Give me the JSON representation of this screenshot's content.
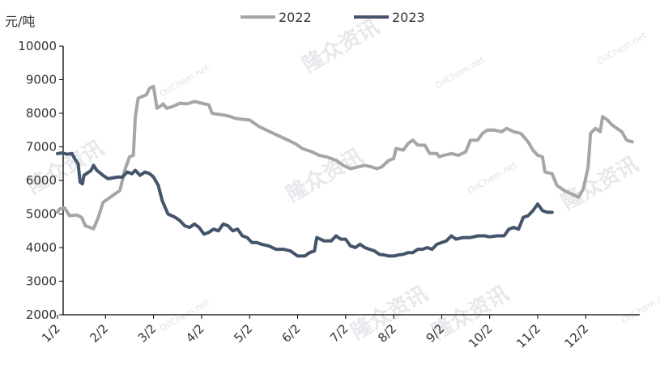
{
  "chart_data": {
    "type": "line",
    "unit_label": "元/吨",
    "ylim": [
      2000,
      10000
    ],
    "yticks": [
      2000,
      3000,
      4000,
      5000,
      6000,
      7000,
      8000,
      9000,
      10000
    ],
    "x_domain": [
      0,
      12
    ],
    "xticks": [
      {
        "label": "1/2",
        "x": 0
      },
      {
        "label": "2/2",
        "x": 1
      },
      {
        "label": "3/2",
        "x": 2
      },
      {
        "label": "4/2",
        "x": 3
      },
      {
        "label": "5/2",
        "x": 4
      },
      {
        "label": "6/2",
        "x": 5
      },
      {
        "label": "7/2",
        "x": 6
      },
      {
        "label": "8/2",
        "x": 7
      },
      {
        "label": "9/2",
        "x": 8
      },
      {
        "label": "10/2",
        "x": 9
      },
      {
        "label": "11/2",
        "x": 10
      },
      {
        "label": "12/2",
        "x": 11
      }
    ],
    "legend_position": "top",
    "watermark": "隆众资讯",
    "watermark_small": "OilChem.net",
    "series": [
      {
        "name": "2022",
        "color": "#a6a6a6",
        "points": [
          [
            0.0,
            5050
          ],
          [
            0.04,
            5150
          ],
          [
            0.15,
            5180
          ],
          [
            0.25,
            4950
          ],
          [
            0.4,
            4970
          ],
          [
            0.5,
            4900
          ],
          [
            0.58,
            4650
          ],
          [
            0.75,
            4560
          ],
          [
            0.85,
            4900
          ],
          [
            0.95,
            5350
          ],
          [
            1.1,
            5500
          ],
          [
            1.3,
            5700
          ],
          [
            1.4,
            6300
          ],
          [
            1.5,
            6700
          ],
          [
            1.58,
            6750
          ],
          [
            1.62,
            7900
          ],
          [
            1.68,
            8450
          ],
          [
            1.85,
            8550
          ],
          [
            1.92,
            8750
          ],
          [
            2.0,
            8800
          ],
          [
            2.07,
            8150
          ],
          [
            2.13,
            8200
          ],
          [
            2.2,
            8280
          ],
          [
            2.27,
            8150
          ],
          [
            2.4,
            8200
          ],
          [
            2.55,
            8300
          ],
          [
            2.7,
            8280
          ],
          [
            2.85,
            8350
          ],
          [
            3.0,
            8300
          ],
          [
            3.15,
            8250
          ],
          [
            3.22,
            8000
          ],
          [
            3.3,
            7980
          ],
          [
            3.45,
            7950
          ],
          [
            3.6,
            7900
          ],
          [
            3.7,
            7850
          ],
          [
            3.85,
            7820
          ],
          [
            4.0,
            7800
          ],
          [
            4.1,
            7700
          ],
          [
            4.2,
            7600
          ],
          [
            4.35,
            7500
          ],
          [
            4.5,
            7400
          ],
          [
            4.65,
            7300
          ],
          [
            4.8,
            7200
          ],
          [
            4.95,
            7100
          ],
          [
            5.1,
            6950
          ],
          [
            5.3,
            6850
          ],
          [
            5.45,
            6750
          ],
          [
            5.6,
            6700
          ],
          [
            5.8,
            6600
          ],
          [
            5.95,
            6450
          ],
          [
            6.1,
            6350
          ],
          [
            6.25,
            6400
          ],
          [
            6.4,
            6450
          ],
          [
            6.55,
            6400
          ],
          [
            6.65,
            6350
          ],
          [
            6.75,
            6400
          ],
          [
            6.9,
            6600
          ],
          [
            7.0,
            6650
          ],
          [
            7.05,
            6950
          ],
          [
            7.2,
            6900
          ],
          [
            7.3,
            7100
          ],
          [
            7.4,
            7200
          ],
          [
            7.5,
            7050
          ],
          [
            7.65,
            7050
          ],
          [
            7.75,
            6800
          ],
          [
            7.9,
            6800
          ],
          [
            7.95,
            6700
          ],
          [
            8.05,
            6750
          ],
          [
            8.2,
            6800
          ],
          [
            8.35,
            6750
          ],
          [
            8.5,
            6850
          ],
          [
            8.6,
            7200
          ],
          [
            8.75,
            7200
          ],
          [
            8.85,
            7400
          ],
          [
            8.95,
            7500
          ],
          [
            9.1,
            7500
          ],
          [
            9.25,
            7450
          ],
          [
            9.35,
            7550
          ],
          [
            9.5,
            7450
          ],
          [
            9.65,
            7400
          ],
          [
            9.8,
            7150
          ],
          [
            9.9,
            6900
          ],
          [
            10.0,
            6750
          ],
          [
            10.1,
            6700
          ],
          [
            10.15,
            6250
          ],
          [
            10.3,
            6200
          ],
          [
            10.4,
            5850
          ],
          [
            10.55,
            5700
          ],
          [
            10.7,
            5600
          ],
          [
            10.85,
            5500
          ],
          [
            10.95,
            5750
          ],
          [
            11.05,
            6400
          ],
          [
            11.1,
            7400
          ],
          [
            11.2,
            7550
          ],
          [
            11.3,
            7450
          ],
          [
            11.35,
            7900
          ],
          [
            11.45,
            7800
          ],
          [
            11.55,
            7650
          ],
          [
            11.65,
            7550
          ],
          [
            11.75,
            7450
          ],
          [
            11.85,
            7200
          ],
          [
            11.97,
            7150
          ]
        ]
      },
      {
        "name": "2023",
        "color": "#44546a",
        "points": [
          [
            0.0,
            6800
          ],
          [
            0.1,
            6820
          ],
          [
            0.2,
            6780
          ],
          [
            0.3,
            6800
          ],
          [
            0.38,
            6600
          ],
          [
            0.43,
            6500
          ],
          [
            0.47,
            5950
          ],
          [
            0.52,
            5900
          ],
          [
            0.55,
            6150
          ],
          [
            0.6,
            6200
          ],
          [
            0.7,
            6300
          ],
          [
            0.75,
            6450
          ],
          [
            0.82,
            6300
          ],
          [
            0.95,
            6150
          ],
          [
            1.05,
            6050
          ],
          [
            1.25,
            6100
          ],
          [
            1.35,
            6100
          ],
          [
            1.45,
            6250
          ],
          [
            1.55,
            6200
          ],
          [
            1.62,
            6300
          ],
          [
            1.72,
            6150
          ],
          [
            1.82,
            6250
          ],
          [
            1.92,
            6200
          ],
          [
            2.0,
            6100
          ],
          [
            2.1,
            5850
          ],
          [
            2.18,
            5400
          ],
          [
            2.3,
            5000
          ],
          [
            2.45,
            4900
          ],
          [
            2.55,
            4800
          ],
          [
            2.65,
            4650
          ],
          [
            2.75,
            4600
          ],
          [
            2.85,
            4700
          ],
          [
            2.95,
            4600
          ],
          [
            3.05,
            4400
          ],
          [
            3.15,
            4450
          ],
          [
            3.25,
            4550
          ],
          [
            3.35,
            4500
          ],
          [
            3.45,
            4700
          ],
          [
            3.55,
            4650
          ],
          [
            3.65,
            4500
          ],
          [
            3.75,
            4550
          ],
          [
            3.85,
            4350
          ],
          [
            3.95,
            4300
          ],
          [
            4.05,
            4150
          ],
          [
            4.15,
            4150
          ],
          [
            4.25,
            4100
          ],
          [
            4.4,
            4050
          ],
          [
            4.55,
            3950
          ],
          [
            4.7,
            3950
          ],
          [
            4.85,
            3900
          ],
          [
            5.0,
            3750
          ],
          [
            5.15,
            3750
          ],
          [
            5.25,
            3850
          ],
          [
            5.35,
            3900
          ],
          [
            5.4,
            4300
          ],
          [
            5.55,
            4200
          ],
          [
            5.7,
            4200
          ],
          [
            5.8,
            4350
          ],
          [
            5.9,
            4250
          ],
          [
            6.0,
            4250
          ],
          [
            6.1,
            4050
          ],
          [
            6.2,
            4000
          ],
          [
            6.3,
            4100
          ],
          [
            6.4,
            4000
          ],
          [
            6.5,
            3950
          ],
          [
            6.6,
            3900
          ],
          [
            6.7,
            3800
          ],
          [
            6.8,
            3780
          ],
          [
            6.9,
            3750
          ],
          [
            7.0,
            3750
          ],
          [
            7.1,
            3780
          ],
          [
            7.2,
            3800
          ],
          [
            7.3,
            3850
          ],
          [
            7.4,
            3850
          ],
          [
            7.5,
            3950
          ],
          [
            7.6,
            3950
          ],
          [
            7.7,
            4000
          ],
          [
            7.8,
            3950
          ],
          [
            7.9,
            4100
          ],
          [
            8.0,
            4150
          ],
          [
            8.1,
            4200
          ],
          [
            8.2,
            4350
          ],
          [
            8.3,
            4250
          ],
          [
            8.45,
            4300
          ],
          [
            8.6,
            4300
          ],
          [
            8.75,
            4350
          ],
          [
            8.9,
            4350
          ],
          [
            9.0,
            4320
          ],
          [
            9.15,
            4350
          ],
          [
            9.3,
            4350
          ],
          [
            9.4,
            4550
          ],
          [
            9.5,
            4600
          ],
          [
            9.6,
            4550
          ],
          [
            9.7,
            4900
          ],
          [
            9.8,
            4950
          ],
          [
            9.9,
            5100
          ],
          [
            10.0,
            5300
          ],
          [
            10.1,
            5100
          ],
          [
            10.2,
            5050
          ],
          [
            10.3,
            5050
          ]
        ]
      }
    ]
  }
}
